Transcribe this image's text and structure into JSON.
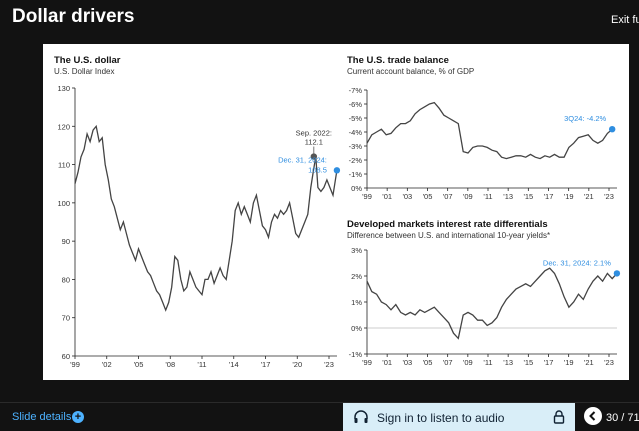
{
  "window": {
    "title": "Dollar drivers",
    "exit_label": "Exit ful"
  },
  "footer": {
    "details_label": "Slide details",
    "audio_label": "Sign in to listen to audio",
    "page": "30 / 71"
  },
  "chart_data": [
    {
      "type": "line",
      "title": "The U.S. dollar",
      "subtitle": "U.S. Dollar Index",
      "ylim": [
        60,
        130
      ],
      "yticks": [
        "130",
        "120",
        "110",
        "100",
        "90",
        "80",
        "70",
        "60"
      ],
      "xticks": [
        "'99",
        "'02",
        "'05",
        "'08",
        "'11",
        "'14",
        "'17",
        "'20",
        "'23"
      ],
      "x_range": [
        1999,
        2025
      ],
      "series": [
        {
          "name": "U.S. Dollar Index",
          "x": [
            1999,
            1999.3,
            1999.6,
            1999.9,
            2000.2,
            2000.5,
            2000.8,
            2001.1,
            2001.4,
            2001.7,
            2002.0,
            2002.3,
            2002.6,
            2002.9,
            2003.2,
            2003.5,
            2003.8,
            2004.1,
            2004.4,
            2004.7,
            2005.0,
            2005.3,
            2005.6,
            2005.9,
            2006.2,
            2006.5,
            2006.8,
            2007.1,
            2007.4,
            2007.7,
            2008.0,
            2008.3,
            2008.6,
            2008.9,
            2009.2,
            2009.5,
            2009.8,
            2010.1,
            2010.4,
            2010.7,
            2011.0,
            2011.3,
            2011.6,
            2011.9,
            2012.2,
            2012.5,
            2012.8,
            2013.1,
            2013.4,
            2013.7,
            2014.0,
            2014.3,
            2014.6,
            2014.9,
            2015.2,
            2015.5,
            2015.8,
            2016.1,
            2016.4,
            2016.7,
            2017.0,
            2017.3,
            2017.6,
            2017.9,
            2018.2,
            2018.5,
            2018.8,
            2019.1,
            2019.4,
            2019.7,
            2020.0,
            2020.3,
            2020.6,
            2020.9,
            2021.2,
            2021.5,
            2021.8,
            2022.1,
            2022.4,
            2022.7,
            2022.9,
            2023.1,
            2023.4,
            2023.7,
            2024.0,
            2024.3,
            2024.6,
            2024.99
          ],
          "values": [
            105,
            108,
            112,
            114,
            118,
            116,
            119,
            120,
            116,
            117,
            110,
            106,
            101,
            99,
            96,
            93,
            95,
            92,
            89,
            87,
            85,
            88,
            86,
            84,
            82,
            81,
            79,
            77,
            76,
            74,
            72,
            74,
            78,
            86,
            85,
            80,
            77,
            78,
            82,
            80,
            78,
            77,
            76,
            80,
            80,
            82,
            79,
            81,
            83,
            81,
            80,
            85,
            90,
            98,
            100,
            97,
            99,
            97,
            95,
            100,
            102,
            98,
            94,
            93,
            91,
            95,
            97,
            96,
            98,
            97,
            98,
            100,
            96,
            92,
            91,
            93,
            95,
            97,
            104,
            109,
            112.1,
            104,
            103,
            104,
            106,
            104,
            102,
            108.5
          ]
        }
      ],
      "annotations": [
        {
          "label": "Sep. 2022:",
          "value_label": "112.1",
          "x": 2022.7,
          "y": 112.1
        },
        {
          "label": "Dec. 31, 2024:",
          "value_label": "108.5",
          "x": 2024.99,
          "y": 108.5
        }
      ],
      "colors": {
        "line": "#444444",
        "highlight": "#2f8ee0"
      }
    },
    {
      "type": "line",
      "title": "The U.S. trade balance",
      "subtitle": "Current account balance, % of GDP",
      "ylim": [
        0,
        -7
      ],
      "yticks": [
        "-7%",
        "-6%",
        "-5%",
        "-4%",
        "-3%",
        "-2%",
        "-1%",
        "0%"
      ],
      "xticks": [
        "'99",
        "'01",
        "'03",
        "'05",
        "'07",
        "'09",
        "'11",
        "'13",
        "'15",
        "'17",
        "'19",
        "'21",
        "'23"
      ],
      "x_range": [
        1999,
        2025
      ],
      "series": [
        {
          "name": "Current account balance",
          "x": [
            1999,
            1999.5,
            2000,
            2000.5,
            2001,
            2001.5,
            2002,
            2002.5,
            2003,
            2003.5,
            2004,
            2004.5,
            2005,
            2005.5,
            2006,
            2006.5,
            2007,
            2007.5,
            2008,
            2008.5,
            2009,
            2009.5,
            2010,
            2010.5,
            2011,
            2011.5,
            2012,
            2012.5,
            2013,
            2013.5,
            2014,
            2014.5,
            2015,
            2015.5,
            2016,
            2016.5,
            2017,
            2017.5,
            2018,
            2018.5,
            2019,
            2019.5,
            2020,
            2020.5,
            2021,
            2021.5,
            2022,
            2022.5,
            2023,
            2023.5,
            2024,
            2024.5
          ],
          "values": [
            -3.2,
            -3.8,
            -4.0,
            -4.2,
            -3.8,
            -3.9,
            -4.3,
            -4.6,
            -4.6,
            -4.8,
            -5.3,
            -5.6,
            -5.8,
            -6.0,
            -6.1,
            -5.7,
            -5.2,
            -5.0,
            -4.8,
            -4.6,
            -2.6,
            -2.5,
            -2.9,
            -3.0,
            -3.0,
            -2.9,
            -2.7,
            -2.6,
            -2.2,
            -2.1,
            -2.2,
            -2.3,
            -2.3,
            -2.2,
            -2.4,
            -2.2,
            -2.1,
            -2.3,
            -2.2,
            -2.4,
            -2.2,
            -2.2,
            -2.9,
            -3.2,
            -3.6,
            -3.7,
            -3.8,
            -3.4,
            -3.2,
            -3.4,
            -3.9,
            -4.2
          ]
        }
      ],
      "annotations": [
        {
          "label": "3Q24: -4.2%",
          "x": 2024.5,
          "y": -4.2
        }
      ],
      "colors": {
        "line": "#444444",
        "highlight": "#2f8ee0"
      }
    },
    {
      "type": "line",
      "title": "Developed markets interest rate differentials",
      "subtitle": "Difference between U.S. and international 10-year yields*",
      "ylim": [
        -1,
        3
      ],
      "yticks": [
        "3%",
        "2%",
        "1%",
        "0%",
        "-1%"
      ],
      "xticks": [
        "'99",
        "'01",
        "'03",
        "'05",
        "'07",
        "'09",
        "'11",
        "'13",
        "'15",
        "'17",
        "'19",
        "'21",
        "'23"
      ],
      "x_range": [
        1999,
        2025
      ],
      "series": [
        {
          "name": "Rate differential",
          "x": [
            1999,
            1999.5,
            2000,
            2000.5,
            2001,
            2001.5,
            2002,
            2002.5,
            2003,
            2003.5,
            2004,
            2004.5,
            2005,
            2005.5,
            2006,
            2006.5,
            2007,
            2007.5,
            2008,
            2008.5,
            2009,
            2009.5,
            2010,
            2010.5,
            2011,
            2011.5,
            2012,
            2012.5,
            2013,
            2013.5,
            2014,
            2014.5,
            2015,
            2015.5,
            2016,
            2016.5,
            2017,
            2017.5,
            2018,
            2018.5,
            2019,
            2019.5,
            2020,
            2020.5,
            2021,
            2021.5,
            2022,
            2022.5,
            2023,
            2023.5,
            2024,
            2024.5,
            2024.99
          ],
          "values": [
            1.8,
            1.4,
            1.3,
            1.0,
            0.9,
            0.7,
            0.9,
            0.6,
            0.5,
            0.6,
            0.5,
            0.7,
            0.6,
            0.7,
            0.8,
            0.6,
            0.4,
            0.2,
            -0.2,
            -0.4,
            0.5,
            0.6,
            0.5,
            0.3,
            0.3,
            0.1,
            0.2,
            0.4,
            0.8,
            1.1,
            1.3,
            1.5,
            1.6,
            1.7,
            1.6,
            1.8,
            2.0,
            2.2,
            2.3,
            2.1,
            1.7,
            1.2,
            0.8,
            1.0,
            1.3,
            1.1,
            1.5,
            1.8,
            2.0,
            1.8,
            2.1,
            1.9,
            2.1
          ]
        }
      ],
      "annotations": [
        {
          "label": "Dec. 31, 2024: 2.1%",
          "x": 2024.99,
          "y": 2.1
        }
      ],
      "colors": {
        "line": "#444444",
        "highlight": "#2f8ee0"
      }
    }
  ]
}
